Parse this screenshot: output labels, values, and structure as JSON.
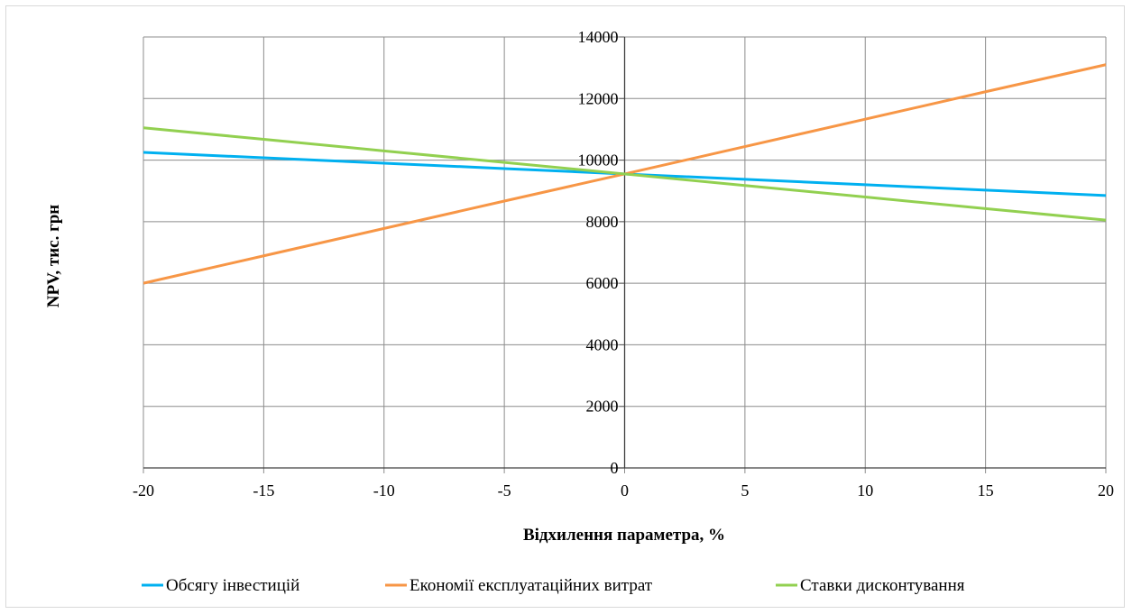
{
  "chart_data": {
    "type": "line",
    "title": "",
    "xlabel": "Відхилення параметра, %",
    "ylabel": "NPV, тис. грн",
    "x": [
      -20,
      -15,
      -10,
      -5,
      0,
      5,
      10,
      15,
      20
    ],
    "xlim": [
      -20,
      20
    ],
    "ylim": [
      0,
      14000
    ],
    "x_ticks": [
      "-20",
      "-15",
      "-10",
      "-5",
      "0",
      "5",
      "10",
      "15",
      "20"
    ],
    "y_ticks": [
      "0",
      "2000",
      "4000",
      "6000",
      "8000",
      "10000",
      "12000",
      "14000"
    ],
    "grid": true,
    "legend_position": "bottom",
    "series": [
      {
        "name": "Обсягу інвестицій",
        "color": "#00b0f0",
        "values": [
          10250,
          10075,
          9900,
          9725,
          9550,
          9375,
          9200,
          9025,
          8850
        ]
      },
      {
        "name": "Економії експлуатаційних витрат",
        "color": "#f79646",
        "values": [
          6000,
          6890,
          7780,
          8670,
          9550,
          10440,
          11330,
          12220,
          13100
        ]
      },
      {
        "name": "Ставки дисконтування",
        "color": "#92d050",
        "values": [
          11050,
          10675,
          10300,
          9925,
          9550,
          9175,
          8800,
          8425,
          8050
        ]
      }
    ]
  }
}
